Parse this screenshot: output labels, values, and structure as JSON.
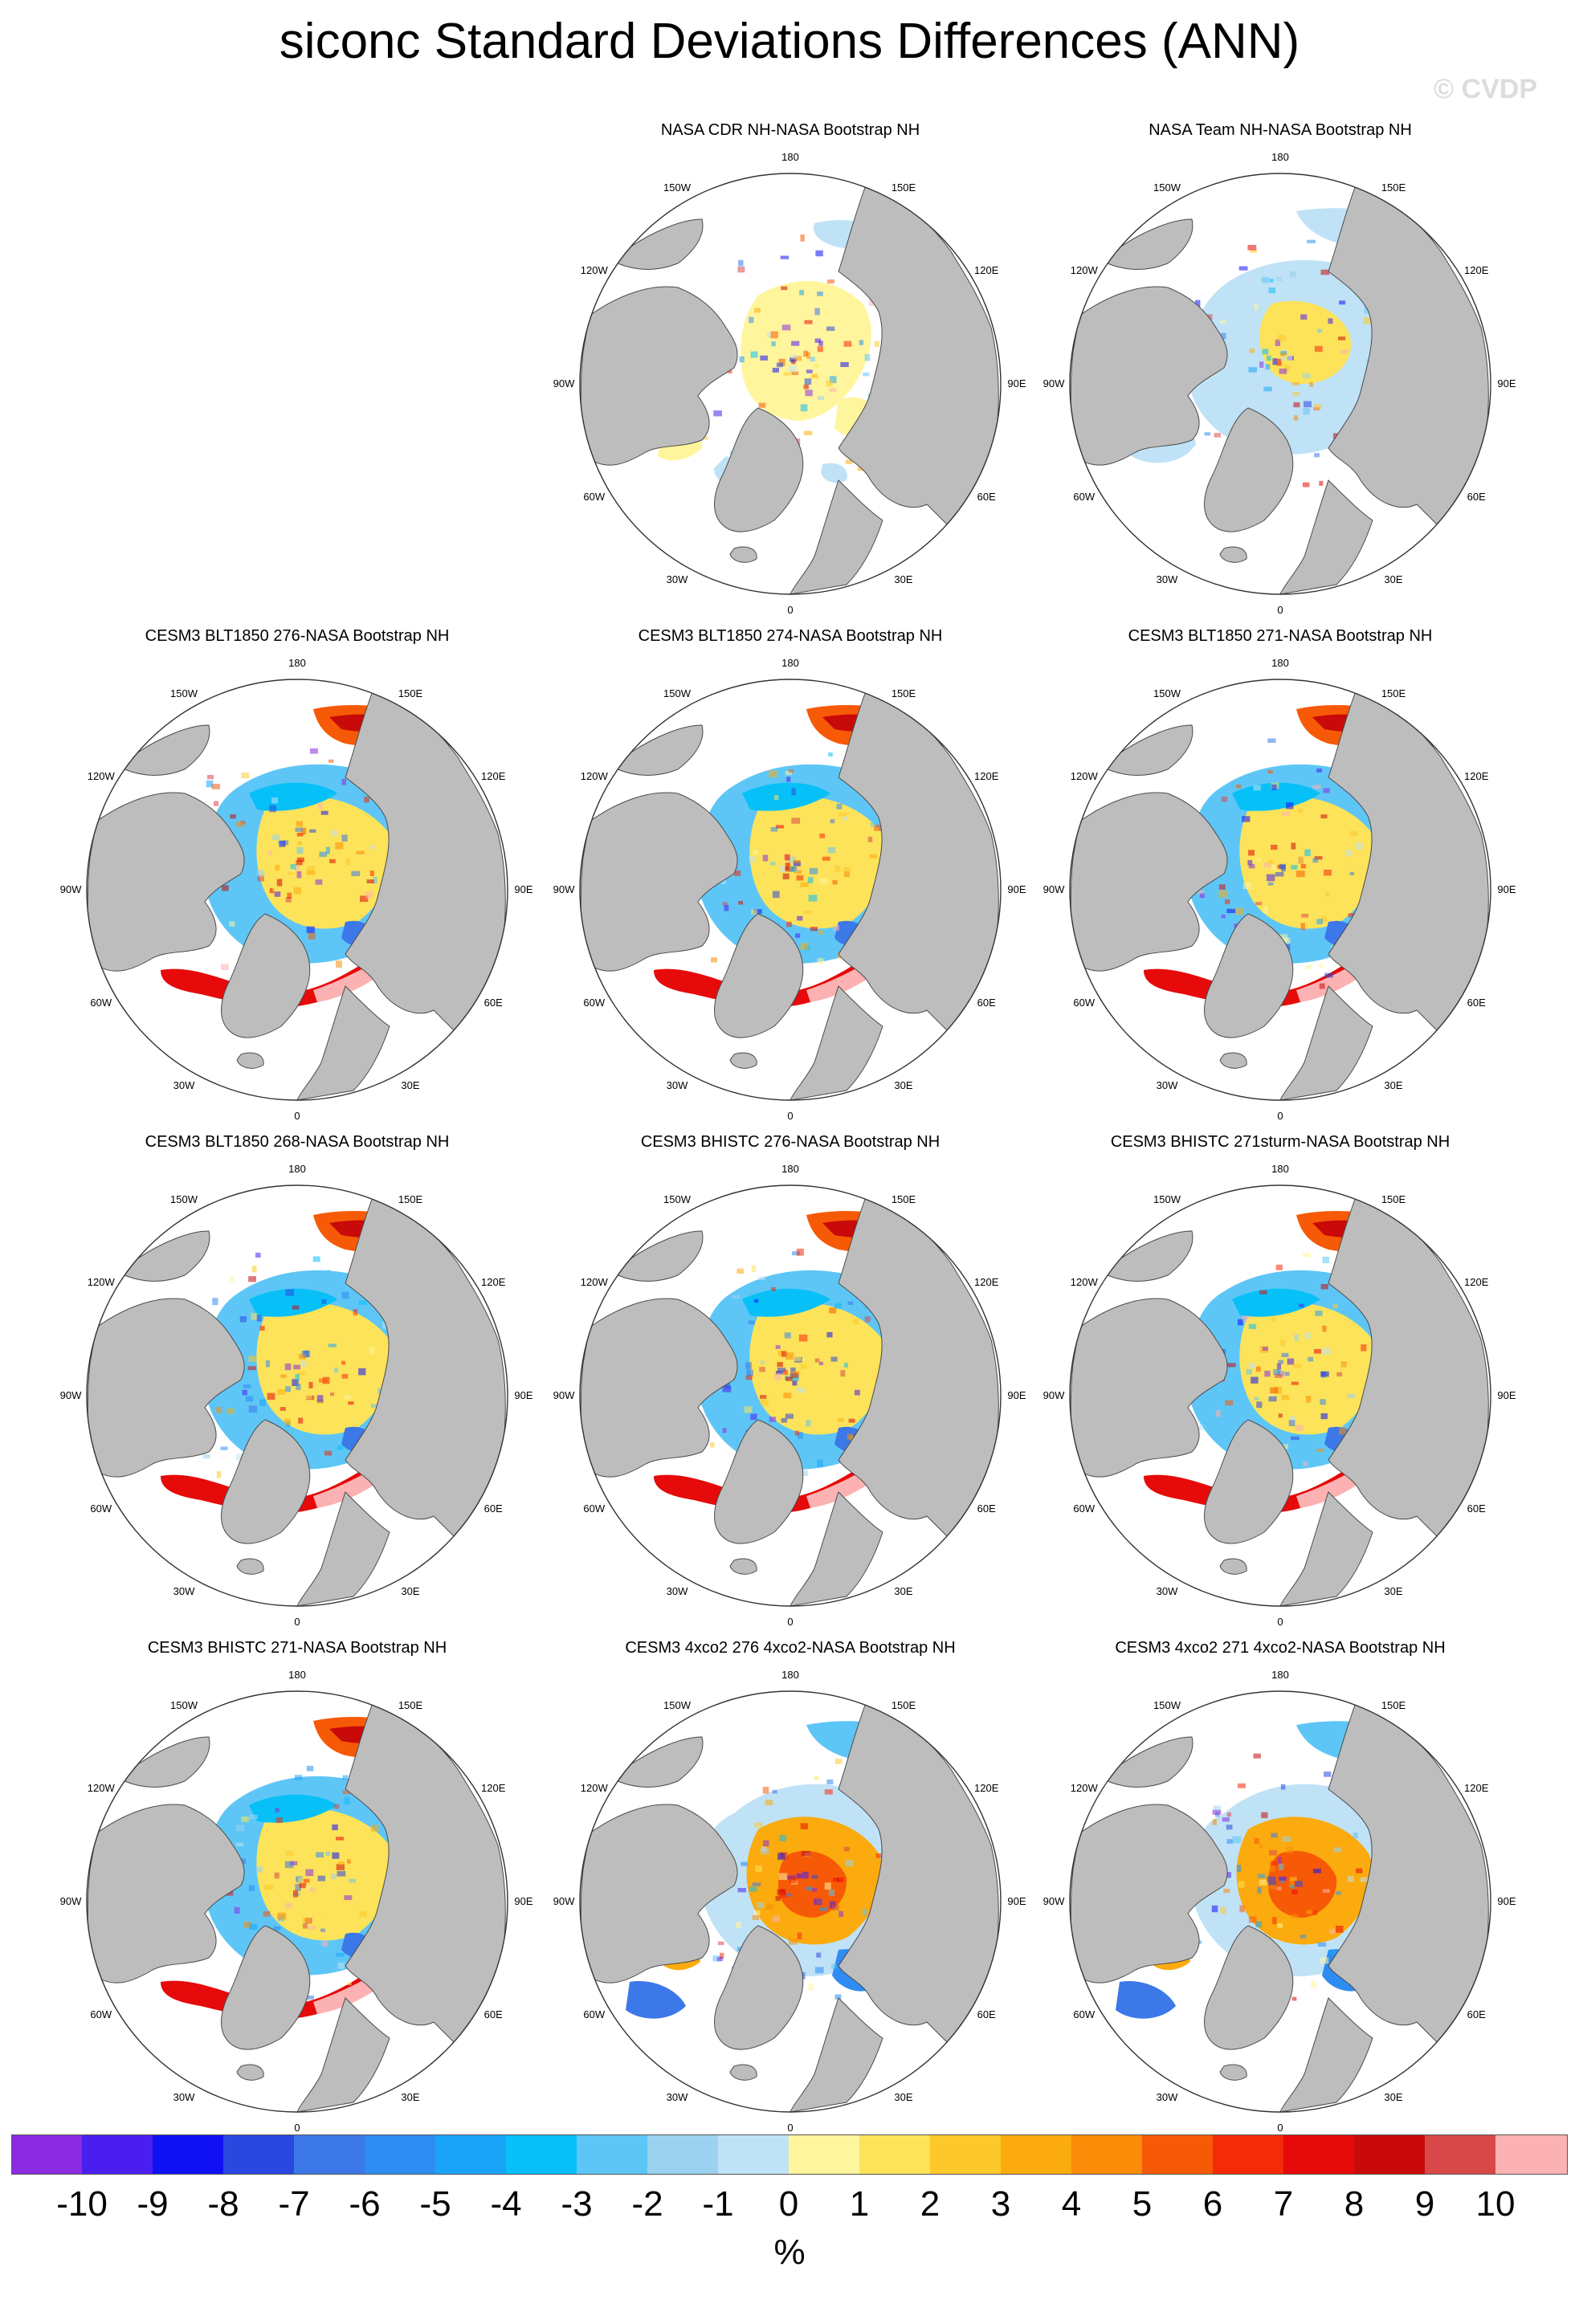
{
  "title": "siconc Standard Deviations Differences (ANN)",
  "watermark": "© CVDP",
  "lon_labels": [
    "180",
    "150E",
    "120E",
    "90E",
    "60E",
    "30E",
    "0",
    "30W",
    "60W",
    "90W",
    "120W",
    "150W"
  ],
  "panels": [
    {
      "title": "NASA CDR NH-NASA Bootstrap NH",
      "pattern": "obs_cdr"
    },
    {
      "title": "NASA Team NH-NASA Bootstrap NH",
      "pattern": "obs_team"
    },
    {
      "title": "CESM3 BLT1850 276-NASA Bootstrap NH",
      "pattern": "model"
    },
    {
      "title": "CESM3 BLT1850 274-NASA Bootstrap NH",
      "pattern": "model"
    },
    {
      "title": "CESM3 BLT1850 271-NASA Bootstrap NH",
      "pattern": "model"
    },
    {
      "title": "CESM3 BLT1850 268-NASA Bootstrap NH",
      "pattern": "model"
    },
    {
      "title": "CESM3 BHISTC 276-NASA Bootstrap NH",
      "pattern": "model"
    },
    {
      "title": "CESM3 BHISTC 271sturm-NASA Bootstrap NH",
      "pattern": "model"
    },
    {
      "title": "CESM3 BHISTC 271-NASA Bootstrap NH",
      "pattern": "model"
    },
    {
      "title": "CESM3 4xco2 276 4xco2-NASA Bootstrap NH",
      "pattern": "warm"
    },
    {
      "title": "CESM3 4xco2 271 4xco2-NASA Bootstrap NH",
      "pattern": "warm"
    }
  ],
  "colorbar": {
    "units": "%",
    "tick_labels": [
      "-10",
      "-9",
      "-8",
      "-7",
      "-6",
      "-5",
      "-4",
      "-3",
      "-2",
      "-1",
      "0",
      "1",
      "2",
      "3",
      "4",
      "5",
      "6",
      "7",
      "8",
      "9",
      "10"
    ],
    "colors": [
      "#8a2be2",
      "#4b1ef0",
      "#1010f5",
      "#2a48e0",
      "#3c78e8",
      "#2e8cf2",
      "#1aa4f7",
      "#08c0f8",
      "#5ec6f6",
      "#9ad2ef",
      "#c0e2f6",
      "#fff59c",
      "#fce35a",
      "#fdc82b",
      "#fbab0e",
      "#fa8c08",
      "#f75a06",
      "#f52a08",
      "#e60a0a",
      "#c80a0a",
      "#d84848",
      "#fcb2b2"
    ]
  },
  "colors": {
    "land": "#bdbdbd",
    "ocean": "#ffffff",
    "coast": "#4a4a4a"
  }
}
